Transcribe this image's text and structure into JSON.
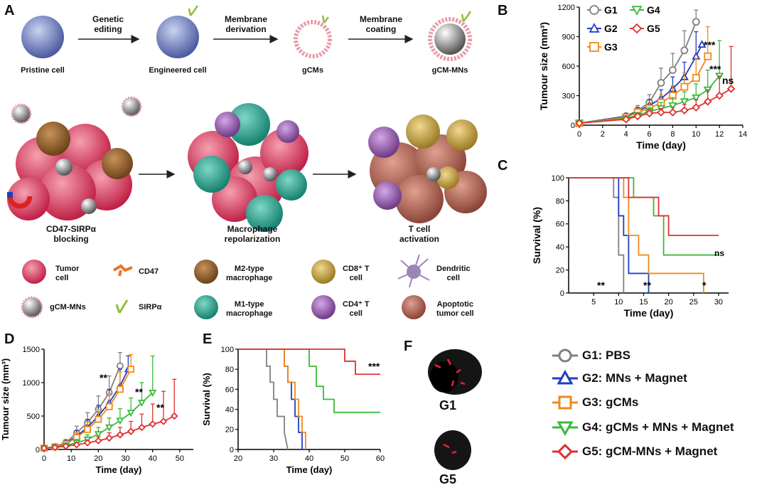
{
  "panels": {
    "A": "A",
    "B": "B",
    "C": "C",
    "D": "D",
    "E": "E",
    "F": "F"
  },
  "schematic": {
    "steps": [
      "Genetic\nediting",
      "Membrane\nderivation",
      "Membrane\ncoating"
    ],
    "stages": [
      "Pristine cell",
      "Engineered cell",
      "gCMs",
      "gCM-MNs"
    ],
    "processes": [
      "CD47-SIRPα\nblocking",
      "Macrophage\nrepolarization",
      "T cell\nactivation"
    ],
    "legend": [
      {
        "label": "Tumor\ncell",
        "color": "#d9405e"
      },
      {
        "label": "CD47",
        "color": "#e8742a"
      },
      {
        "label": "M2-type\nmacrophage",
        "color": "#8a5a2a"
      },
      {
        "label": "CD8⁺ T\ncell",
        "color": "#c9a640"
      },
      {
        "label": "Dendritic\ncell",
        "color": "#9b86b8"
      },
      {
        "label": "gCM-MNs",
        "color": "#aaaaaa"
      },
      {
        "label": "SIRPα",
        "color": "#8fbf3a"
      },
      {
        "label": "M1-type\nmacrophage",
        "color": "#2fa08e"
      },
      {
        "label": "CD4⁺ T\ncell",
        "color": "#9a63b0"
      },
      {
        "label": "Apoptotic\ntumor cell",
        "color": "#b86a5a"
      }
    ]
  },
  "groups": [
    {
      "key": "G1",
      "name": "G1: PBS",
      "color": "#808080",
      "marker": "circle"
    },
    {
      "key": "G2",
      "name": "G2: MNs + Magnet",
      "color": "#1f3fbf",
      "marker": "triangle"
    },
    {
      "key": "G3",
      "name": "G3: gCMs",
      "color": "#f08a1a",
      "marker": "square"
    },
    {
      "key": "G4",
      "name": "G4: gCMs + MNs + Magnet",
      "color": "#3cb83c",
      "marker": "triangle-down"
    },
    {
      "key": "G5",
      "name": "G5: gCM-MNs + Magnet",
      "color": "#e03030",
      "marker": "diamond"
    }
  ],
  "chart_data": [
    {
      "id": "B",
      "type": "line",
      "xlabel": "Time (day)",
      "ylabel": "Tumour size (mm³)",
      "xlim": [
        0,
        14
      ],
      "ylim": [
        0,
        1200
      ],
      "xticks": [
        0,
        2,
        4,
        6,
        8,
        10,
        12,
        14
      ],
      "yticks": [
        0,
        300,
        600,
        900,
        1200
      ],
      "legend": [
        "G1",
        "G4",
        "G2",
        "G5",
        "G3"
      ],
      "series": [
        {
          "name": "G1",
          "x": [
            0,
            4,
            5,
            6,
            7,
            8,
            9,
            10
          ],
          "y": [
            20,
            90,
            150,
            230,
            430,
            560,
            760,
            1050
          ],
          "err": [
            10,
            30,
            50,
            80,
            150,
            170,
            200,
            120
          ]
        },
        {
          "name": "G2",
          "x": [
            0,
            4,
            5,
            6,
            7,
            8,
            9,
            10,
            10.5
          ],
          "y": [
            20,
            90,
            140,
            200,
            270,
            370,
            490,
            700,
            820
          ],
          "err": [
            10,
            30,
            40,
            60,
            90,
            120,
            150,
            250,
            0
          ]
        },
        {
          "name": "G3",
          "x": [
            0,
            4,
            5,
            6,
            7,
            8,
            9,
            10,
            11
          ],
          "y": [
            20,
            80,
            130,
            170,
            230,
            300,
            390,
            480,
            700
          ],
          "err": [
            10,
            30,
            40,
            60,
            80,
            100,
            140,
            200,
            300
          ]
        },
        {
          "name": "G4",
          "x": [
            0,
            4,
            5,
            6,
            7,
            8,
            9,
            10,
            11,
            12
          ],
          "y": [
            20,
            70,
            100,
            140,
            170,
            200,
            240,
            280,
            360,
            500
          ],
          "err": [
            10,
            20,
            30,
            40,
            60,
            80,
            100,
            140,
            200,
            360
          ]
        },
        {
          "name": "G5",
          "x": [
            0,
            4,
            5,
            6,
            7,
            8,
            9,
            10,
            11,
            12,
            13
          ],
          "y": [
            20,
            60,
            90,
            120,
            130,
            130,
            150,
            180,
            240,
            300,
            370
          ],
          "err": [
            10,
            20,
            30,
            40,
            40,
            50,
            60,
            80,
            120,
            200,
            430
          ]
        }
      ],
      "annotations": [
        "***",
        "***",
        "ns"
      ]
    },
    {
      "id": "C",
      "type": "line",
      "xlabel": "Time (day)",
      "ylabel": "Survival (%)",
      "xlim": [
        0,
        32
      ],
      "ylim": [
        0,
        100
      ],
      "xticks": [
        5,
        10,
        15,
        20,
        25,
        30
      ],
      "yticks": [
        0,
        20,
        40,
        60,
        80,
        100
      ],
      "series": [
        {
          "name": "G1",
          "x": [
            0,
            9,
            9,
            10,
            10,
            11,
            11
          ],
          "y": [
            100,
            100,
            83,
            83,
            33,
            33,
            0
          ]
        },
        {
          "name": "G2",
          "x": [
            0,
            10,
            10,
            11,
            11,
            12,
            12,
            16,
            16
          ],
          "y": [
            100,
            100,
            67,
            67,
            50,
            50,
            17,
            17,
            0
          ]
        },
        {
          "name": "G3",
          "x": [
            0,
            11,
            11,
            12,
            12,
            14,
            14,
            16,
            16,
            27,
            27
          ],
          "y": [
            100,
            100,
            83,
            83,
            50,
            50,
            33,
            33,
            17,
            17,
            0
          ]
        },
        {
          "name": "G4",
          "x": [
            0,
            13,
            13,
            17,
            17,
            19,
            19,
            30
          ],
          "y": [
            100,
            100,
            83,
            83,
            67,
            67,
            33,
            33
          ]
        },
        {
          "name": "G5",
          "x": [
            0,
            12,
            12,
            15,
            15,
            18,
            18,
            20,
            20,
            30
          ],
          "y": [
            100,
            100,
            83,
            83,
            83,
            83,
            67,
            67,
            50,
            50
          ]
        }
      ],
      "annotations": [
        "**",
        "**",
        "*",
        "ns"
      ]
    },
    {
      "id": "D",
      "type": "line",
      "xlabel": "Time (day)",
      "ylabel": "Tumour size (mm³)",
      "xlim": [
        0,
        55
      ],
      "ylim": [
        0,
        1500
      ],
      "xticks": [
        0,
        10,
        20,
        30,
        40,
        50
      ],
      "yticks": [
        0,
        500,
        1000,
        1500
      ],
      "series": [
        {
          "name": "G1",
          "x": [
            0,
            4,
            8,
            12,
            16,
            20,
            24,
            28
          ],
          "y": [
            20,
            40,
            100,
            250,
            400,
            600,
            850,
            1250
          ],
          "err": [
            10,
            20,
            50,
            100,
            150,
            200,
            250,
            200
          ]
        },
        {
          "name": "G2",
          "x": [
            0,
            4,
            8,
            12,
            16,
            20,
            24,
            28,
            31
          ],
          "y": [
            20,
            40,
            90,
            200,
            330,
            500,
            700,
            950,
            1200
          ],
          "err": [
            10,
            20,
            40,
            80,
            120,
            160,
            200,
            250,
            200
          ]
        },
        {
          "name": "G3",
          "x": [
            0,
            4,
            8,
            12,
            16,
            20,
            24,
            28,
            32
          ],
          "y": [
            20,
            40,
            80,
            180,
            300,
            450,
            640,
            900,
            1200
          ],
          "err": [
            10,
            20,
            40,
            70,
            110,
            150,
            200,
            260,
            220
          ]
        },
        {
          "name": "G4",
          "x": [
            0,
            4,
            8,
            12,
            16,
            20,
            24,
            28,
            32,
            36,
            40
          ],
          "y": [
            20,
            30,
            60,
            100,
            150,
            230,
            330,
            430,
            550,
            700,
            850
          ],
          "err": [
            10,
            15,
            30,
            50,
            70,
            100,
            140,
            180,
            220,
            300,
            550
          ]
        },
        {
          "name": "G5",
          "x": [
            0,
            4,
            8,
            12,
            16,
            20,
            24,
            28,
            32,
            36,
            40,
            44,
            48
          ],
          "y": [
            20,
            30,
            50,
            70,
            100,
            130,
            170,
            220,
            270,
            330,
            380,
            420,
            500
          ],
          "err": [
            10,
            15,
            20,
            30,
            40,
            60,
            80,
            110,
            150,
            200,
            300,
            450,
            550
          ]
        }
      ],
      "annotations": [
        "**",
        "**",
        "**"
      ]
    },
    {
      "id": "E",
      "type": "line",
      "xlabel": "Time (day)",
      "ylabel": "Survival (%)",
      "xlim": [
        20,
        60
      ],
      "ylim": [
        0,
        100
      ],
      "xticks": [
        20,
        30,
        40,
        50,
        60
      ],
      "yticks": [
        0,
        20,
        40,
        60,
        80,
        100
      ],
      "series": [
        {
          "name": "G1",
          "x": [
            20,
            28,
            28,
            29,
            29,
            30,
            30,
            31,
            31,
            33,
            33,
            34
          ],
          "y": [
            100,
            100,
            83,
            83,
            67,
            67,
            50,
            50,
            33,
            33,
            17,
            0
          ]
        },
        {
          "name": "G2",
          "x": [
            20,
            33,
            33,
            34,
            34,
            35,
            35,
            36,
            36,
            37,
            37,
            38,
            38
          ],
          "y": [
            100,
            100,
            83,
            83,
            67,
            67,
            50,
            50,
            33,
            33,
            17,
            17,
            0
          ]
        },
        {
          "name": "G3",
          "x": [
            20,
            33,
            33,
            34,
            34,
            36,
            36,
            37,
            37,
            38,
            38,
            39,
            39
          ],
          "y": [
            100,
            100,
            83,
            83,
            67,
            67,
            50,
            50,
            33,
            33,
            17,
            17,
            0
          ]
        },
        {
          "name": "G4",
          "x": [
            20,
            40,
            40,
            41,
            41,
            42,
            42,
            44,
            44,
            47,
            47,
            60
          ],
          "y": [
            100,
            100,
            83,
            83,
            83,
            83,
            63,
            63,
            50,
            50,
            37,
            37
          ]
        },
        {
          "name": "G5",
          "x": [
            20,
            50,
            50,
            53,
            53,
            56,
            56,
            60
          ],
          "y": [
            100,
            100,
            88,
            88,
            75,
            75,
            75,
            75
          ]
        }
      ],
      "annotations": [
        "***"
      ]
    }
  ],
  "photos": {
    "top": "G1",
    "bottom": "G5"
  }
}
